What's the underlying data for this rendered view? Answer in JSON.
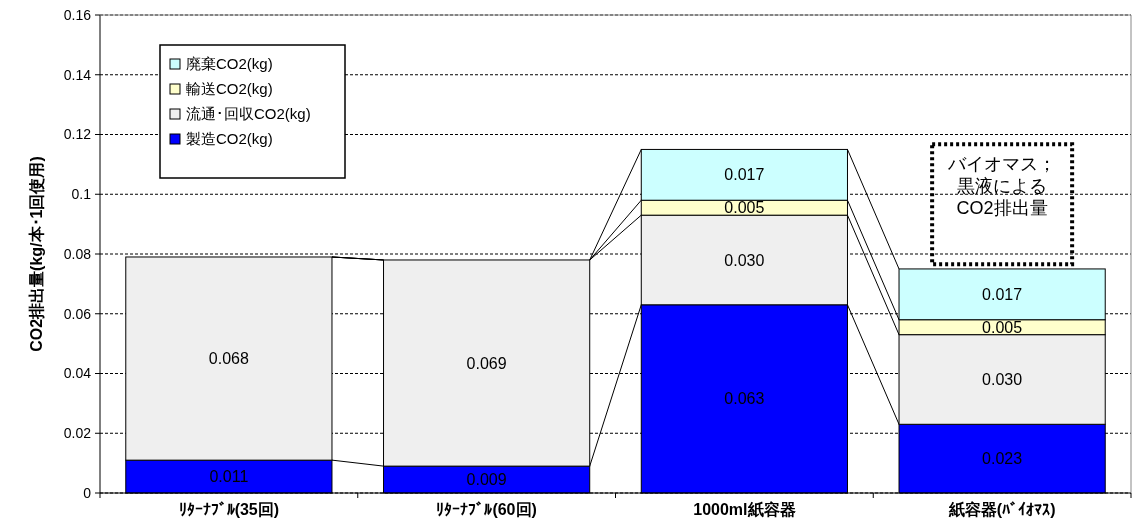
{
  "chart_data": {
    "type": "bar",
    "stacked": true,
    "categories": [
      "ﾘﾀｰﾅﾌﾞﾙ(35回)",
      "ﾘﾀｰﾅﾌﾞﾙ(60回)",
      "1000ml紙容器",
      "紙容器(ﾊﾞｲｵﾏｽ)"
    ],
    "series": [
      {
        "name": "製造CO2(kg)",
        "color": "#0000ff",
        "values": [
          0.011,
          0.009,
          0.063,
          0.023
        ],
        "value_labels": [
          "0.011",
          "0.009",
          "0.063",
          "0.023"
        ]
      },
      {
        "name": "流通･回収CO2(kg)",
        "color": "#efefef",
        "values": [
          0.068,
          0.069,
          0.03,
          0.03
        ],
        "value_labels": [
          "0.068",
          "0.069",
          "0.030",
          "0.030"
        ]
      },
      {
        "name": "輸送CO2(kg)",
        "color": "#ffffcc",
        "values": [
          0,
          0,
          0.005,
          0.005
        ],
        "value_labels": [
          null,
          null,
          "0.005",
          "0.005"
        ]
      },
      {
        "name": "廃棄CO2(kg)",
        "color": "#ccffff",
        "values": [
          0,
          0,
          0.017,
          0.017
        ],
        "value_labels": [
          null,
          null,
          "0.017",
          "0.017"
        ]
      }
    ],
    "ylabel": "CO2排出量(kg/本･1回使用)",
    "ylim": [
      0,
      0.16
    ],
    "yticks": [
      0,
      {
        "value": 0.02,
        "label": "0.02"
      },
      {
        "value": 0.04,
        "label": "0.04"
      },
      {
        "value": 0.06,
        "label": "0.06"
      },
      {
        "value": 0.08,
        "label": "0.08"
      },
      {
        "value": 0.1,
        "label": "0.1"
      },
      {
        "value": 0.12,
        "label": "0.12"
      },
      {
        "value": 0.14,
        "label": "0.14"
      },
      {
        "value": 0.16,
        "label": "0.16"
      }
    ],
    "grid": "y",
    "legend": "top left",
    "annotations": [
      "バイオマス；黒液によるCO2排出量"
    ]
  }
}
